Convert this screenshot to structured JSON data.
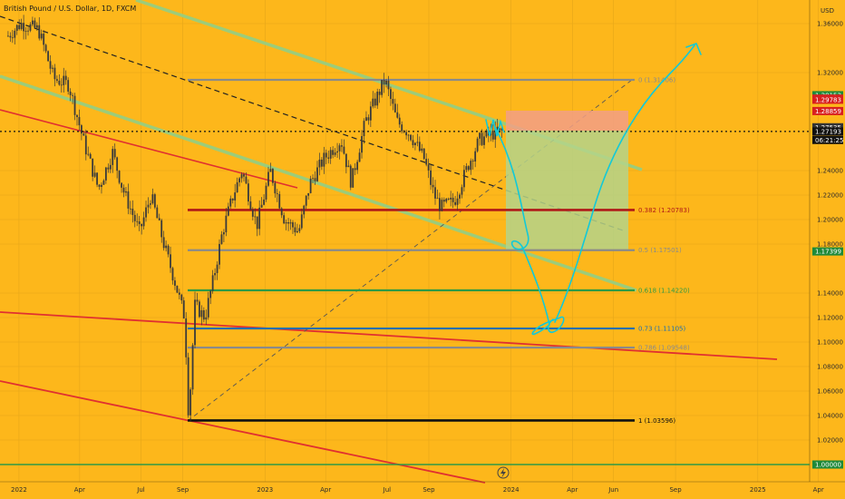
{
  "header": {
    "symbol_title": "British Pound / U.S. Dollar, 1D, FXCM",
    "currency": "USD"
  },
  "colors": {
    "background": "#fdb71b",
    "candle": "#3a3a3a",
    "fib_gray": "#8a8a8a",
    "fib_red": "#b01818",
    "fib_green": "#2e9a45",
    "fib_blue": "#1f6fb0",
    "fib_black": "#111111",
    "channel_green": "#9ccc7a",
    "trend_red": "#e03030",
    "drawing_cyan": "#12c9d8",
    "tag_green": "#1f8a3a",
    "tag_red": "#d82020",
    "tag_dark": "#333333"
  },
  "chart_data": {
    "type": "candlestick",
    "title": "British Pound / U.S. Dollar, 1D, FXCM",
    "x_tick_labels": [
      "2022",
      "Apr",
      "Jul",
      "Sep",
      "2023",
      "Apr",
      "Jul",
      "Sep",
      "2024",
      "Apr",
      "Jun",
      "Sep",
      "2025",
      "Apr"
    ],
    "y_tick_labels": [
      "1.36000",
      "1.32000",
      "1.24000",
      "1.22000",
      "1.20000",
      "1.18000",
      "1.14000",
      "1.12000",
      "1.10000",
      "1.08000",
      "1.06000",
      "1.04000",
      "1.02000"
    ],
    "ylim": [
      0.997,
      1.375
    ],
    "grid": true,
    "price_path": [
      [
        "2022-01-01",
        1.35
      ],
      [
        "2022-01-20",
        1.36
      ],
      [
        "2022-02-15",
        1.355
      ],
      [
        "2022-03-10",
        1.315
      ],
      [
        "2022-04-01",
        1.31
      ],
      [
        "2022-04-25",
        1.26
      ],
      [
        "2022-05-15",
        1.225
      ],
      [
        "2022-06-05",
        1.255
      ],
      [
        "2022-06-20",
        1.225
      ],
      [
        "2022-07-15",
        1.19
      ],
      [
        "2022-08-01",
        1.22
      ],
      [
        "2022-08-20",
        1.18
      ],
      [
        "2022-09-05",
        1.15
      ],
      [
        "2022-09-20",
        1.12
      ],
      [
        "2022-09-26",
        1.036
      ],
      [
        "2022-10-05",
        1.13
      ],
      [
        "2022-10-20",
        1.12
      ],
      [
        "2022-11-01",
        1.15
      ],
      [
        "2022-11-15",
        1.19
      ],
      [
        "2022-12-01",
        1.22
      ],
      [
        "2022-12-14",
        1.24
      ],
      [
        "2023-01-05",
        1.195
      ],
      [
        "2023-01-25",
        1.24
      ],
      [
        "2023-02-15",
        1.2
      ],
      [
        "2023-03-08",
        1.19
      ],
      [
        "2023-03-25",
        1.23
      ],
      [
        "2023-04-15",
        1.25
      ],
      [
        "2023-05-10",
        1.265
      ],
      [
        "2023-05-25",
        1.23
      ],
      [
        "2023-06-15",
        1.28
      ],
      [
        "2023-07-14",
        1.314
      ],
      [
        "2023-08-01",
        1.28
      ],
      [
        "2023-08-20",
        1.27
      ],
      [
        "2023-09-10",
        1.25
      ],
      [
        "2023-09-25",
        1.22
      ],
      [
        "2023-10-05",
        1.21
      ],
      [
        "2023-10-25",
        1.215
      ],
      [
        "2023-11-15",
        1.245
      ],
      [
        "2023-12-01",
        1.265
      ],
      [
        "2023-12-20",
        1.27
      ],
      [
        "2024-01-05",
        1.272
      ]
    ],
    "fib_levels": [
      {
        "label": "0 (1.31406)",
        "value": 1.31406,
        "color": "#8a8a8a"
      },
      {
        "label": "0.382 (1.20783)",
        "value": 1.20783,
        "color": "#b01818"
      },
      {
        "label": "0.5 (1.17501)",
        "value": 1.17501,
        "color": "#8a8a8a"
      },
      {
        "label": "0.618 (1.14220)",
        "value": 1.1422,
        "color": "#2e9a45"
      },
      {
        "label": "0.73 (1.11105)",
        "value": 1.11105,
        "color": "#1f6fb0"
      },
      {
        "label": "0.786 (1.09548)",
        "value": 1.09548,
        "color": "#8a8a8a"
      },
      {
        "label": "1 (1.03596)",
        "value": 1.03596,
        "color": "#111111"
      }
    ],
    "price_tags": [
      {
        "text": "1.30153",
        "value": 1.30153,
        "bg": "#1f8a3a"
      },
      {
        "text": "1.29876",
        "value": 1.29876,
        "bg": "#d82020"
      },
      {
        "text": "1.29783",
        "value": 1.29783,
        "bg": "#d82020"
      },
      {
        "text": "1.28859",
        "value": 1.28859,
        "bg": "#d82020"
      },
      {
        "text": "1.27535",
        "value": 1.27535,
        "bg": "#333333"
      },
      {
        "text": "1.27193",
        "value": 1.27193,
        "bg": "#111111"
      },
      {
        "text": "06:21:25",
        "value": 1.265,
        "bg": "#111111"
      },
      {
        "text": "1.17399",
        "value": 1.17399,
        "bg": "#1f8a3a"
      },
      {
        "text": "1.00000",
        "value": 1.0,
        "bg": "#1f8a3a"
      }
    ],
    "current_price": 1.27193
  }
}
